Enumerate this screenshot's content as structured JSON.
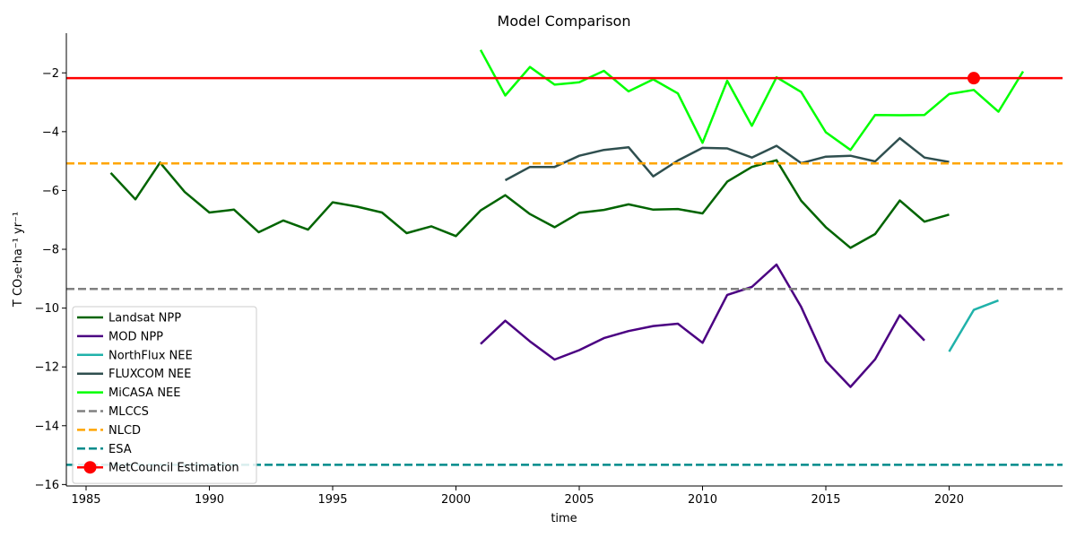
{
  "chart_data": {
    "type": "line",
    "title": "Model Comparison",
    "xlabel": "time",
    "ylabel": "T CO₂e·ha⁻¹ yr⁻¹",
    "xlim": [
      1984.2,
      2024.6
    ],
    "ylim": [
      -16.05,
      -0.65
    ],
    "xticks": [
      1985,
      1990,
      1995,
      2000,
      2005,
      2010,
      2015,
      2020
    ],
    "yticks": [
      -16,
      -14,
      -12,
      -10,
      -8,
      -6,
      -4,
      -2
    ],
    "grid": false,
    "legend_position": "lower-left",
    "series": [
      {
        "name": "Landsat NPP",
        "kind": "line",
        "color": "#006400",
        "dash": false,
        "x": [
          1986,
          1987,
          1988,
          1989,
          1990,
          1991,
          1992,
          1993,
          1994,
          1995,
          1996,
          1997,
          1998,
          1999,
          2000,
          2001,
          2002,
          2003,
          2004,
          2005,
          2006,
          2007,
          2008,
          2009,
          2010,
          2011,
          2012,
          2013,
          2014,
          2015,
          2016,
          2017,
          2018,
          2019,
          2020
        ],
        "values": [
          -5.4,
          -6.3,
          -5.05,
          -6.05,
          -6.75,
          -6.65,
          -7.42,
          -7.02,
          -7.33,
          -6.4,
          -6.55,
          -6.75,
          -7.45,
          -7.22,
          -7.55,
          -6.68,
          -6.16,
          -6.8,
          -7.25,
          -6.76,
          -6.66,
          -6.47,
          -6.65,
          -6.63,
          -6.78,
          -5.7,
          -5.2,
          -4.97,
          -6.35,
          -7.25,
          -7.95,
          -7.48,
          -6.34,
          -7.06,
          -6.82
        ]
      },
      {
        "name": "MOD NPP",
        "kind": "line",
        "color": "#4b0082",
        "dash": false,
        "x": [
          2001,
          2002,
          2003,
          2004,
          2005,
          2006,
          2007,
          2008,
          2009,
          2010,
          2011,
          2012,
          2013,
          2014,
          2015,
          2016,
          2017,
          2018,
          2019
        ],
        "values": [
          -11.22,
          -10.43,
          -11.13,
          -11.75,
          -11.43,
          -11.02,
          -10.78,
          -10.61,
          -10.53,
          -11.18,
          -9.55,
          -9.28,
          -8.52,
          -9.96,
          -11.8,
          -12.68,
          -11.74,
          -10.24,
          -11.1
        ]
      },
      {
        "name": "NorthFlux NEE",
        "kind": "line",
        "color": "#20b2aa",
        "dash": false,
        "x": [
          2020,
          2021,
          2022
        ],
        "values": [
          -11.48,
          -10.06,
          -9.74
        ]
      },
      {
        "name": "FLUXCOM NEE",
        "kind": "line",
        "color": "#2f4f4f",
        "dash": false,
        "x": [
          2002,
          2003,
          2004,
          2005,
          2006,
          2007,
          2008,
          2009,
          2010,
          2011,
          2012,
          2013,
          2014,
          2015,
          2016,
          2017,
          2018,
          2019,
          2020
        ],
        "values": [
          -5.65,
          -5.2,
          -5.2,
          -4.82,
          -4.62,
          -4.53,
          -5.52,
          -4.98,
          -4.55,
          -4.57,
          -4.88,
          -4.48,
          -5.07,
          -4.85,
          -4.82,
          -5.01,
          -4.22,
          -4.88,
          -5.03
        ]
      },
      {
        "name": "MiCASA NEE",
        "kind": "line",
        "color": "#00ff00",
        "dash": false,
        "x": [
          2001,
          2002,
          2003,
          2004,
          2005,
          2006,
          2007,
          2008,
          2009,
          2010,
          2011,
          2012,
          2013,
          2014,
          2015,
          2016,
          2017,
          2018,
          2019,
          2020,
          2021,
          2022,
          2023
        ],
        "values": [
          -1.22,
          -2.77,
          -1.8,
          -2.4,
          -2.32,
          -1.93,
          -2.63,
          -2.22,
          -2.7,
          -4.38,
          -2.27,
          -3.8,
          -2.15,
          -2.65,
          -4.02,
          -4.62,
          -3.43,
          -3.44,
          -3.43,
          -2.72,
          -2.58,
          -3.32,
          -1.95
        ]
      },
      {
        "name": "MLCCS",
        "kind": "hline",
        "color": "#808080",
        "dash": true,
        "value": -9.35
      },
      {
        "name": "NLCD",
        "kind": "hline",
        "color": "#ffa500",
        "dash": true,
        "value": -5.08
      },
      {
        "name": "ESA",
        "kind": "hline",
        "color": "#008b8b",
        "dash": true,
        "value": -15.33
      },
      {
        "name": "MetCouncil Estimation",
        "kind": "hline-marker",
        "color": "#ff0000",
        "dash": false,
        "value": -2.18,
        "marker_x": 2021
      }
    ]
  }
}
